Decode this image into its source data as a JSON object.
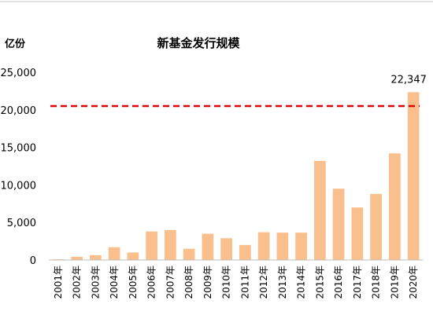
{
  "chart_data": {
    "type": "bar",
    "title": "新基金发行规模",
    "ylabel": "亿份",
    "xlabel": "",
    "categories": [
      "2001年",
      "2002年",
      "2003年",
      "2004年",
      "2005年",
      "2006年",
      "2007年",
      "2008年",
      "2009年",
      "2010年",
      "2011年",
      "2012年",
      "2013年",
      "2014年",
      "2015年",
      "2016年",
      "2017年",
      "2018年",
      "2019年",
      "2020年"
    ],
    "values": [
      100,
      430,
      650,
      1700,
      1000,
      3800,
      4000,
      1500,
      3500,
      2900,
      2000,
      3700,
      3650,
      3650,
      13200,
      9500,
      7000,
      8800,
      14200,
      22347
    ],
    "ylim": [
      0,
      25000
    ],
    "yticks": [
      0,
      5000,
      10000,
      15000,
      20000,
      25000
    ],
    "ytick_labels": [
      "0",
      "5,000",
      "10,000",
      "15,000",
      "20,000",
      "25,000"
    ],
    "grid": false,
    "legend": "none",
    "annotations": [
      {
        "category": "2020年",
        "label": "22,347"
      }
    ],
    "reference_line": {
      "value": 20500,
      "style": "dashed"
    },
    "colors": {
      "bar": "#F9C08E",
      "reference_line": "#E00000",
      "axis": "#BFBFBF"
    }
  }
}
